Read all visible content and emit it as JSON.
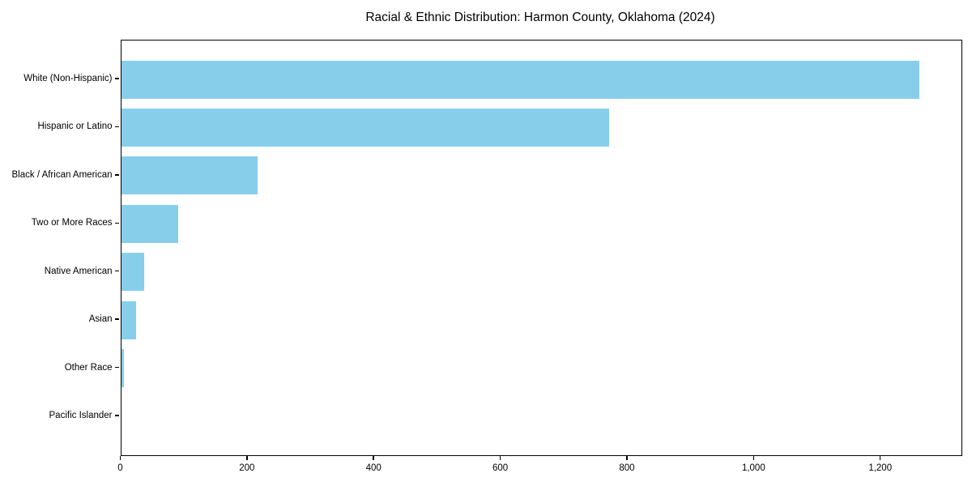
{
  "chart_data": {
    "type": "bar",
    "orientation": "horizontal",
    "title": "Racial & Ethnic Distribution: Harmon County, Oklahoma (2024)",
    "categories": [
      "White (Non-Hispanic)",
      "Hispanic or Latino",
      "Black / African American",
      "Two or More Races",
      "Native American",
      "Asian",
      "Other Race",
      "Pacific Islander"
    ],
    "values": [
      1260,
      770,
      215,
      90,
      37,
      24,
      4,
      0
    ],
    "xlabel": "",
    "ylabel": "",
    "x_tick_values": [
      0,
      200,
      400,
      600,
      800,
      1000,
      1200
    ],
    "x_tick_labels": [
      "0",
      "200",
      "400",
      "600",
      "800",
      "1,000",
      "1,200"
    ],
    "xlim": [
      0,
      1327
    ],
    "grid": false,
    "legend_position": "none",
    "bar_color": "#87CEEB",
    "frame_color": "#000000",
    "text_color": "#000000",
    "background_color": "#FFFFFF"
  }
}
